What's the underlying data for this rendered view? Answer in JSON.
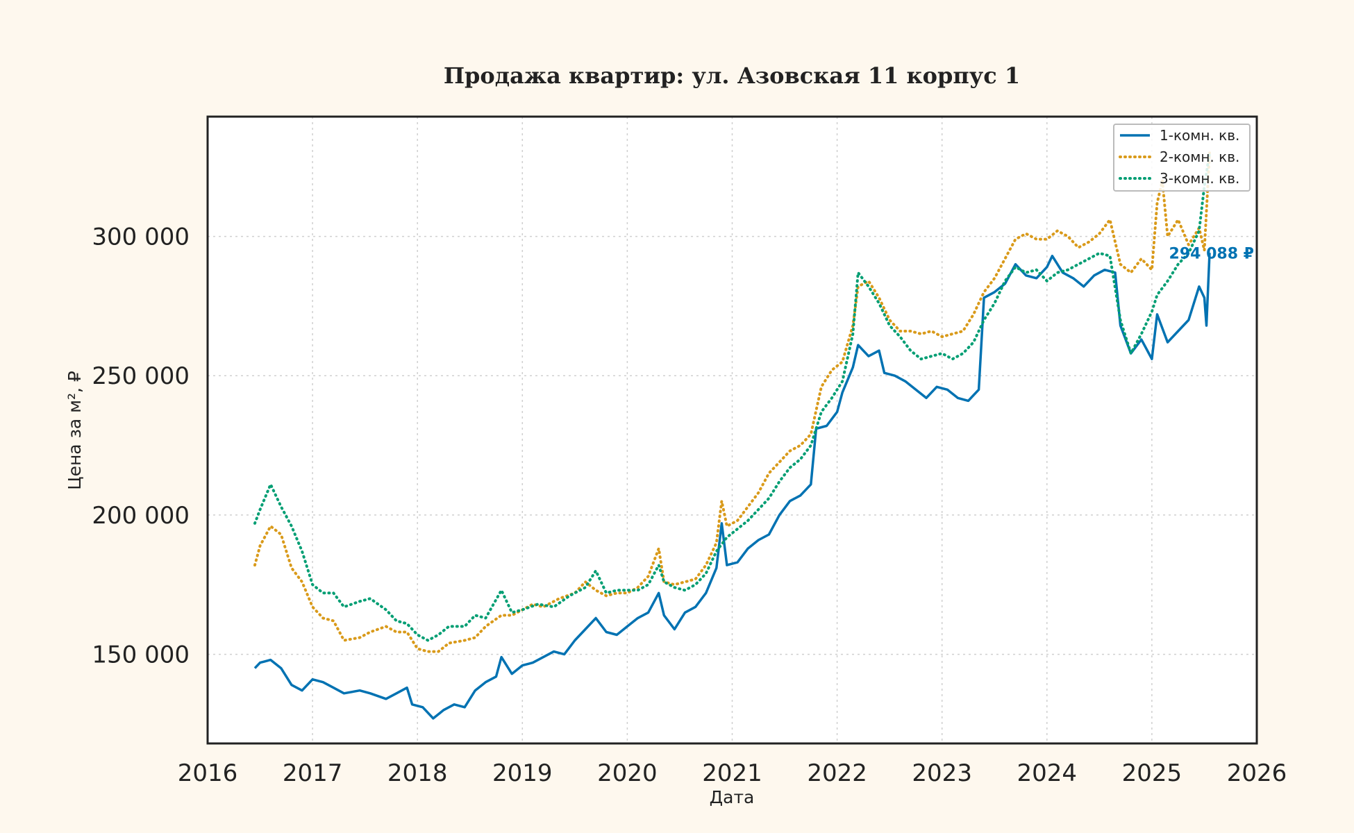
{
  "chart_data": {
    "type": "line",
    "title": "Продажа квартир: ул. Азовская 11 корпус 1",
    "xlabel": "Дата",
    "ylabel": "Цена за м², ₽",
    "xlim": [
      2016.0,
      2026.0
    ],
    "ylim": [
      118000,
      343000
    ],
    "x_ticks": [
      2016,
      2017,
      2018,
      2019,
      2020,
      2021,
      2022,
      2023,
      2024,
      2025,
      2026
    ],
    "x_tick_labels": [
      "2016",
      "2017",
      "2018",
      "2019",
      "2020",
      "2021",
      "2022",
      "2023",
      "2024",
      "2025",
      "2026"
    ],
    "y_ticks": [
      150000,
      200000,
      250000,
      300000
    ],
    "y_tick_labels": [
      "150 000",
      "200 000",
      "250 000",
      "300 000"
    ],
    "grid": true,
    "legend": "top-right",
    "series": [
      {
        "name": "1-комн. кв.",
        "color": "#0072b2",
        "style": "solid",
        "end_label": "294 088 ₽",
        "points": [
          [
            2016.45,
            145000
          ],
          [
            2016.5,
            147000
          ],
          [
            2016.6,
            148000
          ],
          [
            2016.7,
            145000
          ],
          [
            2016.8,
            139000
          ],
          [
            2016.9,
            137000
          ],
          [
            2017.0,
            141000
          ],
          [
            2017.1,
            140000
          ],
          [
            2017.2,
            138000
          ],
          [
            2017.3,
            136000
          ],
          [
            2017.45,
            137000
          ],
          [
            2017.55,
            136000
          ],
          [
            2017.7,
            134000
          ],
          [
            2017.8,
            136000
          ],
          [
            2017.9,
            138000
          ],
          [
            2017.95,
            132000
          ],
          [
            2018.05,
            131000
          ],
          [
            2018.15,
            127000
          ],
          [
            2018.25,
            130000
          ],
          [
            2018.35,
            132000
          ],
          [
            2018.45,
            131000
          ],
          [
            2018.55,
            137000
          ],
          [
            2018.65,
            140000
          ],
          [
            2018.75,
            142000
          ],
          [
            2018.8,
            149000
          ],
          [
            2018.9,
            143000
          ],
          [
            2019.0,
            146000
          ],
          [
            2019.1,
            147000
          ],
          [
            2019.2,
            149000
          ],
          [
            2019.3,
            151000
          ],
          [
            2019.4,
            150000
          ],
          [
            2019.5,
            155000
          ],
          [
            2019.6,
            159000
          ],
          [
            2019.7,
            163000
          ],
          [
            2019.8,
            158000
          ],
          [
            2019.9,
            157000
          ],
          [
            2020.0,
            160000
          ],
          [
            2020.1,
            163000
          ],
          [
            2020.2,
            165000
          ],
          [
            2020.3,
            172000
          ],
          [
            2020.35,
            164000
          ],
          [
            2020.45,
            159000
          ],
          [
            2020.55,
            165000
          ],
          [
            2020.65,
            167000
          ],
          [
            2020.75,
            172000
          ],
          [
            2020.85,
            181000
          ],
          [
            2020.9,
            197000
          ],
          [
            2020.95,
            182000
          ],
          [
            2021.05,
            183000
          ],
          [
            2021.15,
            188000
          ],
          [
            2021.25,
            191000
          ],
          [
            2021.35,
            193000
          ],
          [
            2021.45,
            200000
          ],
          [
            2021.55,
            205000
          ],
          [
            2021.65,
            207000
          ],
          [
            2021.75,
            211000
          ],
          [
            2021.8,
            231000
          ],
          [
            2021.9,
            232000
          ],
          [
            2022.0,
            237000
          ],
          [
            2022.05,
            244000
          ],
          [
            2022.15,
            253000
          ],
          [
            2022.2,
            261000
          ],
          [
            2022.3,
            257000
          ],
          [
            2022.4,
            259000
          ],
          [
            2022.45,
            251000
          ],
          [
            2022.55,
            250000
          ],
          [
            2022.65,
            248000
          ],
          [
            2022.75,
            245000
          ],
          [
            2022.85,
            242000
          ],
          [
            2022.95,
            246000
          ],
          [
            2023.05,
            245000
          ],
          [
            2023.15,
            242000
          ],
          [
            2023.25,
            241000
          ],
          [
            2023.35,
            245000
          ],
          [
            2023.4,
            278000
          ],
          [
            2023.5,
            280000
          ],
          [
            2023.6,
            283000
          ],
          [
            2023.7,
            290000
          ],
          [
            2023.8,
            286000
          ],
          [
            2023.9,
            285000
          ],
          [
            2024.0,
            289000
          ],
          [
            2024.05,
            293000
          ],
          [
            2024.15,
            287000
          ],
          [
            2024.25,
            285000
          ],
          [
            2024.35,
            282000
          ],
          [
            2024.45,
            286000
          ],
          [
            2024.55,
            288000
          ],
          [
            2024.65,
            287000
          ],
          [
            2024.7,
            268000
          ],
          [
            2024.8,
            258000
          ],
          [
            2024.9,
            263000
          ],
          [
            2025.0,
            256000
          ],
          [
            2025.05,
            272000
          ],
          [
            2025.15,
            262000
          ],
          [
            2025.25,
            266000
          ],
          [
            2025.35,
            270000
          ],
          [
            2025.45,
            282000
          ],
          [
            2025.5,
            278000
          ],
          [
            2025.52,
            268000
          ],
          [
            2025.55,
            294088
          ]
        ]
      },
      {
        "name": "2-комн. кв.",
        "color": "#d99a1a",
        "style": "dotted",
        "points": [
          [
            2016.45,
            182000
          ],
          [
            2016.5,
            189000
          ],
          [
            2016.6,
            196000
          ],
          [
            2016.7,
            193000
          ],
          [
            2016.8,
            181000
          ],
          [
            2016.9,
            176000
          ],
          [
            2017.0,
            167000
          ],
          [
            2017.1,
            163000
          ],
          [
            2017.2,
            162000
          ],
          [
            2017.3,
            155000
          ],
          [
            2017.45,
            156000
          ],
          [
            2017.55,
            158000
          ],
          [
            2017.7,
            160000
          ],
          [
            2017.8,
            158000
          ],
          [
            2017.9,
            158000
          ],
          [
            2018.0,
            152000
          ],
          [
            2018.1,
            151000
          ],
          [
            2018.2,
            151000
          ],
          [
            2018.3,
            154000
          ],
          [
            2018.45,
            155000
          ],
          [
            2018.55,
            156000
          ],
          [
            2018.65,
            160000
          ],
          [
            2018.8,
            164000
          ],
          [
            2018.9,
            164000
          ],
          [
            2019.0,
            166000
          ],
          [
            2019.1,
            168000
          ],
          [
            2019.2,
            167000
          ],
          [
            2019.35,
            170000
          ],
          [
            2019.5,
            172000
          ],
          [
            2019.6,
            176000
          ],
          [
            2019.7,
            173000
          ],
          [
            2019.8,
            171000
          ],
          [
            2019.9,
            172000
          ],
          [
            2020.0,
            172000
          ],
          [
            2020.1,
            174000
          ],
          [
            2020.2,
            178000
          ],
          [
            2020.3,
            188000
          ],
          [
            2020.35,
            176000
          ],
          [
            2020.45,
            175000
          ],
          [
            2020.55,
            176000
          ],
          [
            2020.65,
            177000
          ],
          [
            2020.75,
            182000
          ],
          [
            2020.85,
            190000
          ],
          [
            2020.9,
            205000
          ],
          [
            2020.95,
            196000
          ],
          [
            2021.05,
            198000
          ],
          [
            2021.15,
            203000
          ],
          [
            2021.25,
            208000
          ],
          [
            2021.35,
            215000
          ],
          [
            2021.45,
            219000
          ],
          [
            2021.55,
            223000
          ],
          [
            2021.65,
            225000
          ],
          [
            2021.75,
            229000
          ],
          [
            2021.85,
            246000
          ],
          [
            2021.95,
            252000
          ],
          [
            2022.05,
            255000
          ],
          [
            2022.15,
            268000
          ],
          [
            2022.2,
            282000
          ],
          [
            2022.3,
            284000
          ],
          [
            2022.4,
            278000
          ],
          [
            2022.5,
            270000
          ],
          [
            2022.6,
            266000
          ],
          [
            2022.7,
            266000
          ],
          [
            2022.8,
            265000
          ],
          [
            2022.9,
            266000
          ],
          [
            2023.0,
            264000
          ],
          [
            2023.1,
            265000
          ],
          [
            2023.2,
            266000
          ],
          [
            2023.3,
            272000
          ],
          [
            2023.4,
            280000
          ],
          [
            2023.5,
            285000
          ],
          [
            2023.6,
            292000
          ],
          [
            2023.7,
            299000
          ],
          [
            2023.8,
            301000
          ],
          [
            2023.9,
            299000
          ],
          [
            2024.0,
            299000
          ],
          [
            2024.1,
            302000
          ],
          [
            2024.2,
            300000
          ],
          [
            2024.3,
            296000
          ],
          [
            2024.4,
            298000
          ],
          [
            2024.5,
            301000
          ],
          [
            2024.6,
            306000
          ],
          [
            2024.7,
            290000
          ],
          [
            2024.8,
            287000
          ],
          [
            2024.9,
            292000
          ],
          [
            2025.0,
            288000
          ],
          [
            2025.05,
            312000
          ],
          [
            2025.1,
            320000
          ],
          [
            2025.15,
            300000
          ],
          [
            2025.25,
            306000
          ],
          [
            2025.35,
            297000
          ],
          [
            2025.45,
            303000
          ],
          [
            2025.5,
            295000
          ],
          [
            2025.55,
            330000
          ]
        ]
      },
      {
        "name": "3-комн. кв.",
        "color": "#009e73",
        "style": "dotted",
        "points": [
          [
            2016.45,
            197000
          ],
          [
            2016.5,
            202000
          ],
          [
            2016.6,
            211000
          ],
          [
            2016.7,
            203000
          ],
          [
            2016.8,
            196000
          ],
          [
            2016.9,
            187000
          ],
          [
            2017.0,
            175000
          ],
          [
            2017.1,
            172000
          ],
          [
            2017.2,
            172000
          ],
          [
            2017.3,
            167000
          ],
          [
            2017.45,
            169000
          ],
          [
            2017.55,
            170000
          ],
          [
            2017.7,
            166000
          ],
          [
            2017.8,
            162000
          ],
          [
            2017.9,
            161000
          ],
          [
            2018.0,
            157000
          ],
          [
            2018.1,
            155000
          ],
          [
            2018.2,
            157000
          ],
          [
            2018.3,
            160000
          ],
          [
            2018.45,
            160000
          ],
          [
            2018.55,
            164000
          ],
          [
            2018.65,
            163000
          ],
          [
            2018.8,
            173000
          ],
          [
            2018.9,
            165000
          ],
          [
            2019.0,
            166000
          ],
          [
            2019.15,
            168000
          ],
          [
            2019.3,
            167000
          ],
          [
            2019.45,
            171000
          ],
          [
            2019.6,
            174000
          ],
          [
            2019.7,
            180000
          ],
          [
            2019.8,
            172000
          ],
          [
            2019.9,
            173000
          ],
          [
            2020.0,
            173000
          ],
          [
            2020.1,
            173000
          ],
          [
            2020.2,
            175000
          ],
          [
            2020.3,
            182000
          ],
          [
            2020.35,
            176000
          ],
          [
            2020.45,
            174000
          ],
          [
            2020.55,
            173000
          ],
          [
            2020.65,
            175000
          ],
          [
            2020.75,
            179000
          ],
          [
            2020.85,
            187000
          ],
          [
            2020.95,
            192000
          ],
          [
            2021.05,
            195000
          ],
          [
            2021.15,
            198000
          ],
          [
            2021.25,
            202000
          ],
          [
            2021.35,
            206000
          ],
          [
            2021.45,
            212000
          ],
          [
            2021.55,
            217000
          ],
          [
            2021.65,
            220000
          ],
          [
            2021.75,
            225000
          ],
          [
            2021.85,
            237000
          ],
          [
            2021.95,
            242000
          ],
          [
            2022.05,
            248000
          ],
          [
            2022.15,
            265000
          ],
          [
            2022.2,
            287000
          ],
          [
            2022.3,
            282000
          ],
          [
            2022.4,
            276000
          ],
          [
            2022.5,
            268000
          ],
          [
            2022.6,
            264000
          ],
          [
            2022.7,
            259000
          ],
          [
            2022.8,
            256000
          ],
          [
            2022.9,
            257000
          ],
          [
            2023.0,
            258000
          ],
          [
            2023.1,
            256000
          ],
          [
            2023.2,
            258000
          ],
          [
            2023.3,
            262000
          ],
          [
            2023.4,
            270000
          ],
          [
            2023.5,
            276000
          ],
          [
            2023.6,
            284000
          ],
          [
            2023.7,
            289000
          ],
          [
            2023.8,
            287000
          ],
          [
            2023.9,
            288000
          ],
          [
            2024.0,
            284000
          ],
          [
            2024.1,
            287000
          ],
          [
            2024.2,
            288000
          ],
          [
            2024.3,
            290000
          ],
          [
            2024.4,
            292000
          ],
          [
            2024.5,
            294000
          ],
          [
            2024.6,
            293000
          ],
          [
            2024.7,
            270000
          ],
          [
            2024.8,
            258000
          ],
          [
            2024.9,
            265000
          ],
          [
            2025.0,
            273000
          ],
          [
            2025.05,
            279000
          ],
          [
            2025.15,
            284000
          ],
          [
            2025.25,
            290000
          ],
          [
            2025.35,
            294000
          ],
          [
            2025.45,
            302000
          ],
          [
            2025.5,
            318000
          ],
          [
            2025.55,
            330000
          ]
        ]
      }
    ]
  }
}
